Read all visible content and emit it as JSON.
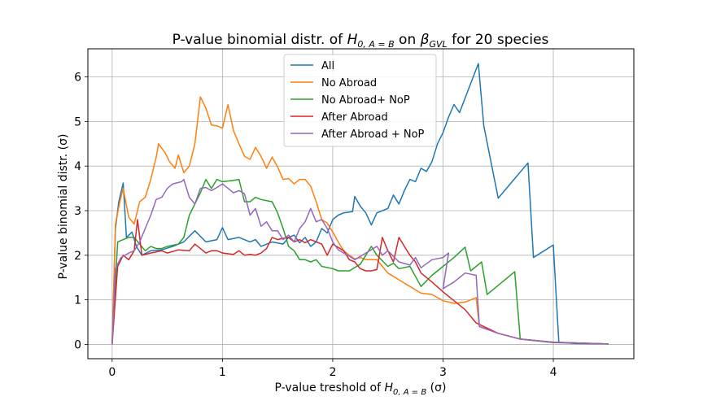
{
  "chart_data": {
    "type": "line",
    "title_parts": {
      "prefix": "P-value binomial distr. of ",
      "hyp_base": "H",
      "hyp_sub": "0, A = B",
      "mid": " on ",
      "beta_base": "β",
      "beta_sub": "GVL",
      "suffix": " for 20 species"
    },
    "xlabel_parts": {
      "prefix": "P-value treshold of ",
      "hyp_base": "H",
      "hyp_sub": "0, A = B",
      "suffix": " (σ)"
    },
    "ylabel": "P-value binomial distr. (σ)",
    "xlim": [
      -0.22,
      4.73
    ],
    "ylim": [
      -0.32,
      6.63
    ],
    "xticks": [
      0,
      1,
      2,
      3,
      4
    ],
    "yticks": [
      0,
      1,
      2,
      3,
      4,
      5,
      6
    ],
    "grid": true,
    "legend_position": "top-center",
    "series": [
      {
        "name": "All",
        "color": "#1f77b4",
        "points": [
          [
            0,
            0
          ],
          [
            0.03,
            2.6
          ],
          [
            0.06,
            3.2
          ],
          [
            0.1,
            3.62
          ],
          [
            0.13,
            2.4
          ],
          [
            0.18,
            2.52
          ],
          [
            0.22,
            2.2
          ],
          [
            0.27,
            2.0
          ],
          [
            0.35,
            2.1
          ],
          [
            0.45,
            2.12
          ],
          [
            0.55,
            2.2
          ],
          [
            0.65,
            2.3
          ],
          [
            0.75,
            2.55
          ],
          [
            0.85,
            2.3
          ],
          [
            0.95,
            2.35
          ],
          [
            1.0,
            2.62
          ],
          [
            1.05,
            2.35
          ],
          [
            1.15,
            2.4
          ],
          [
            1.25,
            2.3
          ],
          [
            1.3,
            2.35
          ],
          [
            1.35,
            2.2
          ],
          [
            1.45,
            2.3
          ],
          [
            1.55,
            2.25
          ],
          [
            1.6,
            2.4
          ],
          [
            1.65,
            2.45
          ],
          [
            1.7,
            2.28
          ],
          [
            1.75,
            2.4
          ],
          [
            1.8,
            2.2
          ],
          [
            1.85,
            2.3
          ],
          [
            1.9,
            2.6
          ],
          [
            1.95,
            2.5
          ],
          [
            2.0,
            2.8
          ],
          [
            2.05,
            2.9
          ],
          [
            2.1,
            2.95
          ],
          [
            2.18,
            2.98
          ],
          [
            2.2,
            3.32
          ],
          [
            2.25,
            3.1
          ],
          [
            2.3,
            2.95
          ],
          [
            2.35,
            2.68
          ],
          [
            2.4,
            2.95
          ],
          [
            2.5,
            3.05
          ],
          [
            2.55,
            3.35
          ],
          [
            2.6,
            3.15
          ],
          [
            2.65,
            3.45
          ],
          [
            2.7,
            3.7
          ],
          [
            2.75,
            3.65
          ],
          [
            2.8,
            3.95
          ],
          [
            2.85,
            3.88
          ],
          [
            2.9,
            4.1
          ],
          [
            2.95,
            4.5
          ],
          [
            3.0,
            4.75
          ],
          [
            3.05,
            5.1
          ],
          [
            3.1,
            5.38
          ],
          [
            3.15,
            5.2
          ],
          [
            3.32,
            6.3
          ],
          [
            3.37,
            4.9
          ],
          [
            3.5,
            3.28
          ],
          [
            3.77,
            4.07
          ],
          [
            3.82,
            1.95
          ],
          [
            4.0,
            2.23
          ],
          [
            4.05,
            0.05
          ],
          [
            4.2,
            0.02
          ],
          [
            4.5,
            0.01
          ]
        ]
      },
      {
        "name": "No Abroad",
        "color": "#ff7f0e",
        "points": [
          [
            0,
            0
          ],
          [
            0.03,
            2.7
          ],
          [
            0.07,
            3.2
          ],
          [
            0.1,
            3.5
          ],
          [
            0.15,
            2.85
          ],
          [
            0.2,
            2.7
          ],
          [
            0.25,
            3.2
          ],
          [
            0.3,
            3.3
          ],
          [
            0.35,
            3.7
          ],
          [
            0.4,
            4.2
          ],
          [
            0.42,
            4.5
          ],
          [
            0.48,
            4.3
          ],
          [
            0.52,
            4.1
          ],
          [
            0.57,
            3.95
          ],
          [
            0.6,
            4.25
          ],
          [
            0.65,
            3.85
          ],
          [
            0.7,
            4.0
          ],
          [
            0.75,
            4.5
          ],
          [
            0.8,
            5.55
          ],
          [
            0.85,
            5.3
          ],
          [
            0.9,
            4.92
          ],
          [
            0.95,
            4.9
          ],
          [
            1.0,
            4.85
          ],
          [
            1.05,
            5.38
          ],
          [
            1.1,
            4.8
          ],
          [
            1.15,
            4.5
          ],
          [
            1.2,
            4.22
          ],
          [
            1.25,
            4.15
          ],
          [
            1.3,
            4.42
          ],
          [
            1.35,
            4.22
          ],
          [
            1.4,
            3.95
          ],
          [
            1.45,
            4.2
          ],
          [
            1.5,
            3.98
          ],
          [
            1.55,
            3.7
          ],
          [
            1.6,
            3.72
          ],
          [
            1.65,
            3.6
          ],
          [
            1.7,
            3.7
          ],
          [
            1.75,
            3.7
          ],
          [
            1.8,
            3.55
          ],
          [
            1.85,
            3.2
          ],
          [
            1.9,
            2.8
          ],
          [
            1.95,
            2.72
          ],
          [
            2.0,
            2.52
          ],
          [
            2.05,
            2.3
          ],
          [
            2.1,
            2.1
          ],
          [
            2.15,
            2.0
          ],
          [
            2.2,
            1.92
          ],
          [
            2.25,
            1.95
          ],
          [
            2.3,
            1.9
          ],
          [
            2.4,
            1.9
          ],
          [
            2.45,
            1.75
          ],
          [
            2.5,
            1.6
          ],
          [
            2.6,
            1.45
          ],
          [
            2.7,
            1.3
          ],
          [
            2.8,
            1.15
          ],
          [
            2.9,
            1.12
          ],
          [
            3.0,
            0.98
          ],
          [
            3.1,
            0.92
          ],
          [
            3.2,
            0.95
          ],
          [
            3.3,
            1.05
          ],
          [
            3.33,
            0.4
          ],
          [
            3.5,
            0.25
          ],
          [
            3.7,
            0.12
          ],
          [
            4.0,
            0.05
          ],
          [
            4.5,
            0.01
          ]
        ]
      },
      {
        "name": "No Abroad+ NoP",
        "color": "#2ca02c",
        "points": [
          [
            0,
            0
          ],
          [
            0.05,
            2.3
          ],
          [
            0.1,
            2.35
          ],
          [
            0.15,
            2.4
          ],
          [
            0.2,
            2.4
          ],
          [
            0.25,
            2.25
          ],
          [
            0.3,
            2.1
          ],
          [
            0.35,
            2.2
          ],
          [
            0.4,
            2.15
          ],
          [
            0.45,
            2.15
          ],
          [
            0.5,
            2.2
          ],
          [
            0.6,
            2.25
          ],
          [
            0.65,
            2.4
          ],
          [
            0.7,
            2.9
          ],
          [
            0.8,
            3.4
          ],
          [
            0.85,
            3.7
          ],
          [
            0.9,
            3.5
          ],
          [
            0.95,
            3.7
          ],
          [
            1.0,
            3.65
          ],
          [
            1.1,
            3.68
          ],
          [
            1.15,
            3.7
          ],
          [
            1.2,
            3.2
          ],
          [
            1.25,
            3.2
          ],
          [
            1.3,
            3.3
          ],
          [
            1.35,
            3.25
          ],
          [
            1.45,
            3.2
          ],
          [
            1.5,
            2.95
          ],
          [
            1.55,
            2.6
          ],
          [
            1.6,
            2.2
          ],
          [
            1.65,
            2.1
          ],
          [
            1.7,
            1.9
          ],
          [
            1.75,
            1.9
          ],
          [
            1.8,
            1.85
          ],
          [
            1.85,
            1.9
          ],
          [
            1.9,
            1.75
          ],
          [
            2.0,
            1.7
          ],
          [
            2.05,
            1.65
          ],
          [
            2.15,
            1.65
          ],
          [
            2.25,
            1.8
          ],
          [
            2.35,
            2.2
          ],
          [
            2.4,
            2.0
          ],
          [
            2.5,
            1.75
          ],
          [
            2.55,
            1.82
          ],
          [
            2.6,
            1.7
          ],
          [
            2.7,
            1.75
          ],
          [
            2.8,
            1.3
          ],
          [
            2.9,
            1.55
          ],
          [
            3.0,
            1.75
          ],
          [
            3.1,
            1.95
          ],
          [
            3.2,
            2.18
          ],
          [
            3.25,
            1.65
          ],
          [
            3.3,
            1.75
          ],
          [
            3.35,
            1.85
          ],
          [
            3.4,
            1.12
          ],
          [
            3.65,
            1.63
          ],
          [
            3.7,
            0.12
          ],
          [
            4.0,
            0.04
          ],
          [
            4.5,
            0.01
          ]
        ]
      },
      {
        "name": "After Abroad",
        "color": "#d62728",
        "points": [
          [
            0,
            0
          ],
          [
            0.05,
            1.75
          ],
          [
            0.1,
            2.0
          ],
          [
            0.15,
            1.9
          ],
          [
            0.2,
            2.1
          ],
          [
            0.23,
            2.8
          ],
          [
            0.27,
            2.0
          ],
          [
            0.35,
            2.05
          ],
          [
            0.45,
            2.1
          ],
          [
            0.5,
            2.05
          ],
          [
            0.6,
            2.12
          ],
          [
            0.7,
            2.1
          ],
          [
            0.75,
            2.25
          ],
          [
            0.8,
            2.15
          ],
          [
            0.85,
            2.05
          ],
          [
            0.9,
            2.1
          ],
          [
            0.95,
            2.1
          ],
          [
            1.0,
            2.05
          ],
          [
            1.1,
            2.02
          ],
          [
            1.15,
            2.1
          ],
          [
            1.2,
            2.0
          ],
          [
            1.25,
            2.02
          ],
          [
            1.3,
            2.0
          ],
          [
            1.35,
            2.05
          ],
          [
            1.4,
            2.15
          ],
          [
            1.45,
            2.4
          ],
          [
            1.5,
            2.35
          ],
          [
            1.55,
            2.38
          ],
          [
            1.6,
            2.4
          ],
          [
            1.65,
            2.3
          ],
          [
            1.7,
            2.35
          ],
          [
            1.75,
            2.28
          ],
          [
            1.8,
            2.35
          ],
          [
            1.85,
            2.3
          ],
          [
            1.9,
            2.25
          ],
          [
            1.95,
            2.0
          ],
          [
            2.0,
            2.25
          ],
          [
            2.1,
            2.1
          ],
          [
            2.15,
            1.9
          ],
          [
            2.2,
            1.85
          ],
          [
            2.25,
            1.7
          ],
          [
            2.3,
            1.65
          ],
          [
            2.35,
            1.65
          ],
          [
            2.4,
            1.68
          ],
          [
            2.45,
            2.4
          ],
          [
            2.5,
            2.1
          ],
          [
            2.55,
            1.85
          ],
          [
            2.6,
            2.4
          ],
          [
            2.65,
            2.2
          ],
          [
            2.7,
            2.0
          ],
          [
            2.75,
            1.85
          ],
          [
            2.8,
            1.6
          ],
          [
            2.9,
            1.4
          ],
          [
            3.0,
            1.18
          ],
          [
            3.1,
            0.98
          ],
          [
            3.2,
            0.78
          ],
          [
            3.3,
            0.48
          ],
          [
            3.5,
            0.25
          ],
          [
            3.7,
            0.12
          ],
          [
            4.0,
            0.05
          ],
          [
            4.5,
            0.01
          ]
        ]
      },
      {
        "name": "After Abroad + NoP",
        "color": "#9467bd",
        "points": [
          [
            0,
            0
          ],
          [
            0.03,
            1.7
          ],
          [
            0.08,
            1.95
          ],
          [
            0.15,
            2.05
          ],
          [
            0.2,
            2.1
          ],
          [
            0.25,
            2.3
          ],
          [
            0.3,
            2.6
          ],
          [
            0.35,
            2.9
          ],
          [
            0.4,
            3.25
          ],
          [
            0.45,
            3.3
          ],
          [
            0.5,
            3.5
          ],
          [
            0.55,
            3.6
          ],
          [
            0.63,
            3.65
          ],
          [
            0.65,
            3.7
          ],
          [
            0.7,
            3.3
          ],
          [
            0.75,
            3.15
          ],
          [
            0.8,
            3.5
          ],
          [
            0.85,
            3.52
          ],
          [
            0.9,
            3.45
          ],
          [
            0.95,
            3.52
          ],
          [
            1.0,
            3.6
          ],
          [
            1.05,
            3.5
          ],
          [
            1.1,
            3.4
          ],
          [
            1.15,
            3.45
          ],
          [
            1.2,
            3.38
          ],
          [
            1.25,
            2.9
          ],
          [
            1.3,
            3.05
          ],
          [
            1.35,
            2.65
          ],
          [
            1.4,
            2.75
          ],
          [
            1.45,
            2.55
          ],
          [
            1.5,
            2.55
          ],
          [
            1.55,
            2.35
          ],
          [
            1.6,
            2.45
          ],
          [
            1.65,
            2.3
          ],
          [
            1.7,
            2.6
          ],
          [
            1.75,
            2.75
          ],
          [
            1.8,
            3.05
          ],
          [
            1.85,
            2.75
          ],
          [
            1.9,
            2.8
          ],
          [
            1.95,
            2.6
          ],
          [
            2.0,
            2.3
          ],
          [
            2.05,
            2.12
          ],
          [
            2.1,
            2.05
          ],
          [
            2.15,
            1.98
          ],
          [
            2.2,
            1.9
          ],
          [
            2.3,
            2.05
          ],
          [
            2.4,
            2.2
          ],
          [
            2.45,
            2.0
          ],
          [
            2.5,
            2.1
          ],
          [
            2.6,
            1.85
          ],
          [
            2.7,
            1.78
          ],
          [
            2.75,
            1.95
          ],
          [
            2.8,
            1.72
          ],
          [
            2.9,
            1.9
          ],
          [
            3.0,
            1.95
          ],
          [
            3.05,
            2.05
          ],
          [
            3.0,
            1.25
          ],
          [
            3.1,
            1.4
          ],
          [
            3.2,
            1.6
          ],
          [
            3.3,
            1.55
          ],
          [
            3.33,
            0.4
          ],
          [
            3.5,
            0.25
          ],
          [
            3.7,
            0.12
          ],
          [
            4.0,
            0.05
          ],
          [
            4.5,
            0.01
          ]
        ]
      }
    ]
  }
}
